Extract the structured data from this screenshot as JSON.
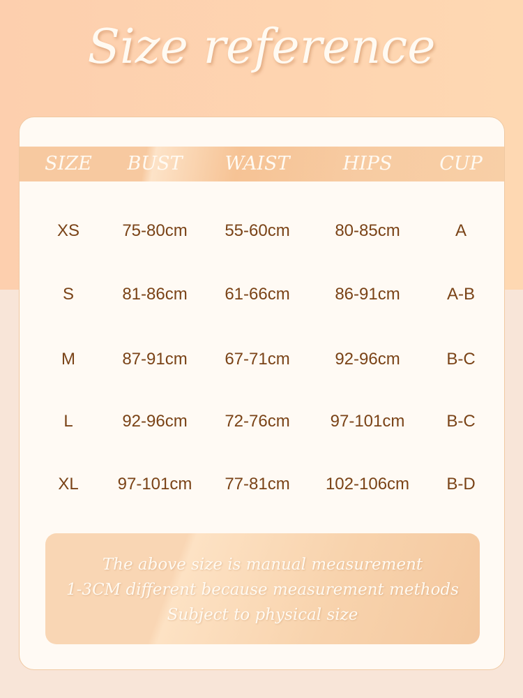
{
  "title": "Size reference",
  "table": {
    "headers": [
      "SIZE",
      "BUST",
      "WAIST",
      "HIPS",
      "CUP"
    ],
    "rows": [
      [
        "XS",
        "75-80cm",
        "55-60cm",
        "80-85cm",
        "A"
      ],
      [
        "S",
        "81-86cm",
        "61-66cm",
        "86-91cm",
        "A-B"
      ],
      [
        "M",
        "87-91cm",
        "67-71cm",
        "92-96cm",
        "B-C"
      ],
      [
        "L",
        "92-96cm",
        "72-76cm",
        "97-101cm",
        "B-C"
      ],
      [
        "XL",
        "97-101cm",
        "77-81cm",
        "102-106cm",
        "B-D"
      ]
    ]
  },
  "note": {
    "lines": [
      "The above size is manual measurement",
      "1-3CM different because  measurement methods",
      "Subject to physical size"
    ]
  },
  "colors": {
    "background_top": "#fdcfae",
    "background_bottom": "#f8e5d8",
    "card": "#fffaf4",
    "header": "#f7c9a0",
    "text": "#7a4317"
  }
}
